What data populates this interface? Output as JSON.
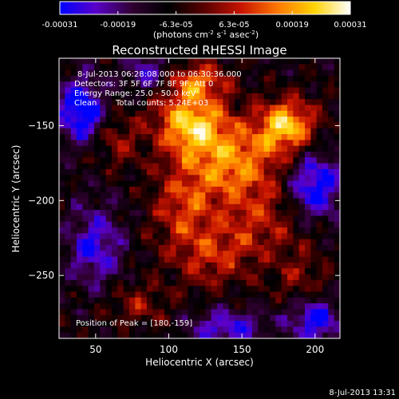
{
  "colorbar": {
    "tick_labels": [
      "-0.00031",
      "-0.00019",
      "-6.3e-05",
      "6.3e-05",
      "0.00019",
      "0.00031"
    ],
    "unit_main": "(photons cm",
    "unit_exp1": "-2",
    "unit_s": " s",
    "unit_exp2": "-1",
    "unit_asec": " asec",
    "unit_exp3": "-2",
    "unit_close": ")",
    "stops": [
      "#0000ff",
      "#5a00c8",
      "#300030",
      "#000000",
      "#5a0000",
      "#c81400",
      "#ff7800",
      "#ffd200",
      "#ffffff"
    ]
  },
  "chart_data": {
    "type": "heatmap",
    "title": "Reconstructed RHESSI Image",
    "xlabel": "Heliocentric X (arcsec)",
    "ylabel": "Heliocentric Y (arcsec)",
    "xlim": [
      25,
      217
    ],
    "ylim": [
      -292,
      -105
    ],
    "x_ticks": [
      50,
      100,
      150,
      200
    ],
    "y_ticks": [
      -150,
      -200,
      -250
    ],
    "annotations": {
      "time_range": "8-Jul-2013 06:28:08.000 to 06:30:36.000",
      "detectors": "Detectors: 3F 5F 6F 7F 8F 9F, Att 0",
      "energy": "Energy Range: 25.0 - 50.0 keV",
      "clean": "Clean",
      "counts": "Total counts: 5.24E+03",
      "peak": "Position of Peak = [180,-159]"
    },
    "peak": {
      "x": 180,
      "y": -159
    },
    "hotspots": [
      {
        "x": 115,
        "y": -148,
        "v": 1.0,
        "sx": 25,
        "sy": 22
      },
      {
        "x": 180,
        "y": -150,
        "v": 1.0,
        "sx": 20,
        "sy": 18
      },
      {
        "x": 145,
        "y": -175,
        "v": 0.75,
        "sx": 30,
        "sy": 25
      },
      {
        "x": 110,
        "y": -205,
        "v": 0.55,
        "sx": 22,
        "sy": 30
      },
      {
        "x": 160,
        "y": -215,
        "v": 0.45,
        "sx": 30,
        "sy": 25
      },
      {
        "x": 65,
        "y": -160,
        "v": 0.35,
        "sx": 15,
        "sy": 18
      },
      {
        "x": 130,
        "y": -240,
        "v": 0.4,
        "sx": 25,
        "sy": 20
      },
      {
        "x": 190,
        "y": -250,
        "v": 0.3,
        "sx": 20,
        "sy": 20
      },
      {
        "x": 80,
        "y": -270,
        "v": 0.35,
        "sx": 20,
        "sy": 15
      },
      {
        "x": 120,
        "y": -120,
        "v": 0.6,
        "sx": 20,
        "sy": 12
      }
    ],
    "coldspots": [
      {
        "x": 40,
        "y": -140,
        "v": -0.9,
        "sx": 15,
        "sy": 20
      },
      {
        "x": 200,
        "y": -190,
        "v": -0.8,
        "sx": 18,
        "sy": 22
      },
      {
        "x": 200,
        "y": -280,
        "v": -0.7,
        "sx": 18,
        "sy": 15
      },
      {
        "x": 50,
        "y": -230,
        "v": -0.6,
        "sx": 18,
        "sy": 25
      },
      {
        "x": 140,
        "y": -285,
        "v": -0.6,
        "sx": 25,
        "sy": 12
      },
      {
        "x": 85,
        "y": -115,
        "v": -0.5,
        "sx": 15,
        "sy": 12
      }
    ]
  },
  "footer": {
    "timestamp": "8-Jul-2013 13:31"
  }
}
